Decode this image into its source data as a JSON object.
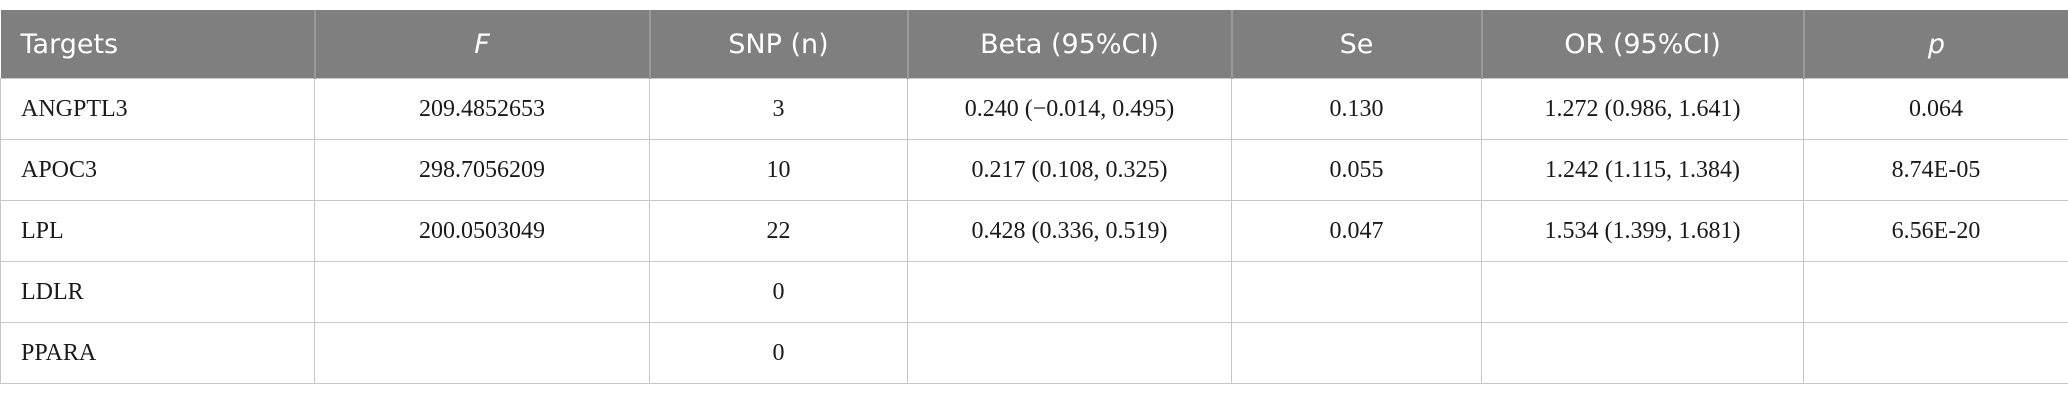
{
  "table": {
    "header": [
      "Targets",
      "F",
      "SNP (n)",
      "Beta (95%CI)",
      "Se",
      "OR (95%CI)",
      "p"
    ],
    "rows": [
      [
        "ANGPTL3",
        "209.4852653",
        "3",
        "0.240 (−0.014, 0.495)",
        "0.130",
        "1.272 (0.986, 1.641)",
        "0.064"
      ],
      [
        "APOC3",
        "298.7056209",
        "10",
        "0.217 (0.108, 0.325)",
        "0.055",
        "1.242 (1.115, 1.384)",
        "8.74E-05"
      ],
      [
        "LPL",
        "200.0503049",
        "22",
        "0.428 (0.336, 0.519)",
        "0.047",
        "1.534 (1.399, 1.681)",
        "6.56E-20"
      ],
      [
        "LDLR",
        null,
        "0",
        null,
        null,
        null,
        null
      ],
      [
        "PPARA",
        null,
        "0",
        null,
        null,
        null,
        null
      ]
    ]
  }
}
